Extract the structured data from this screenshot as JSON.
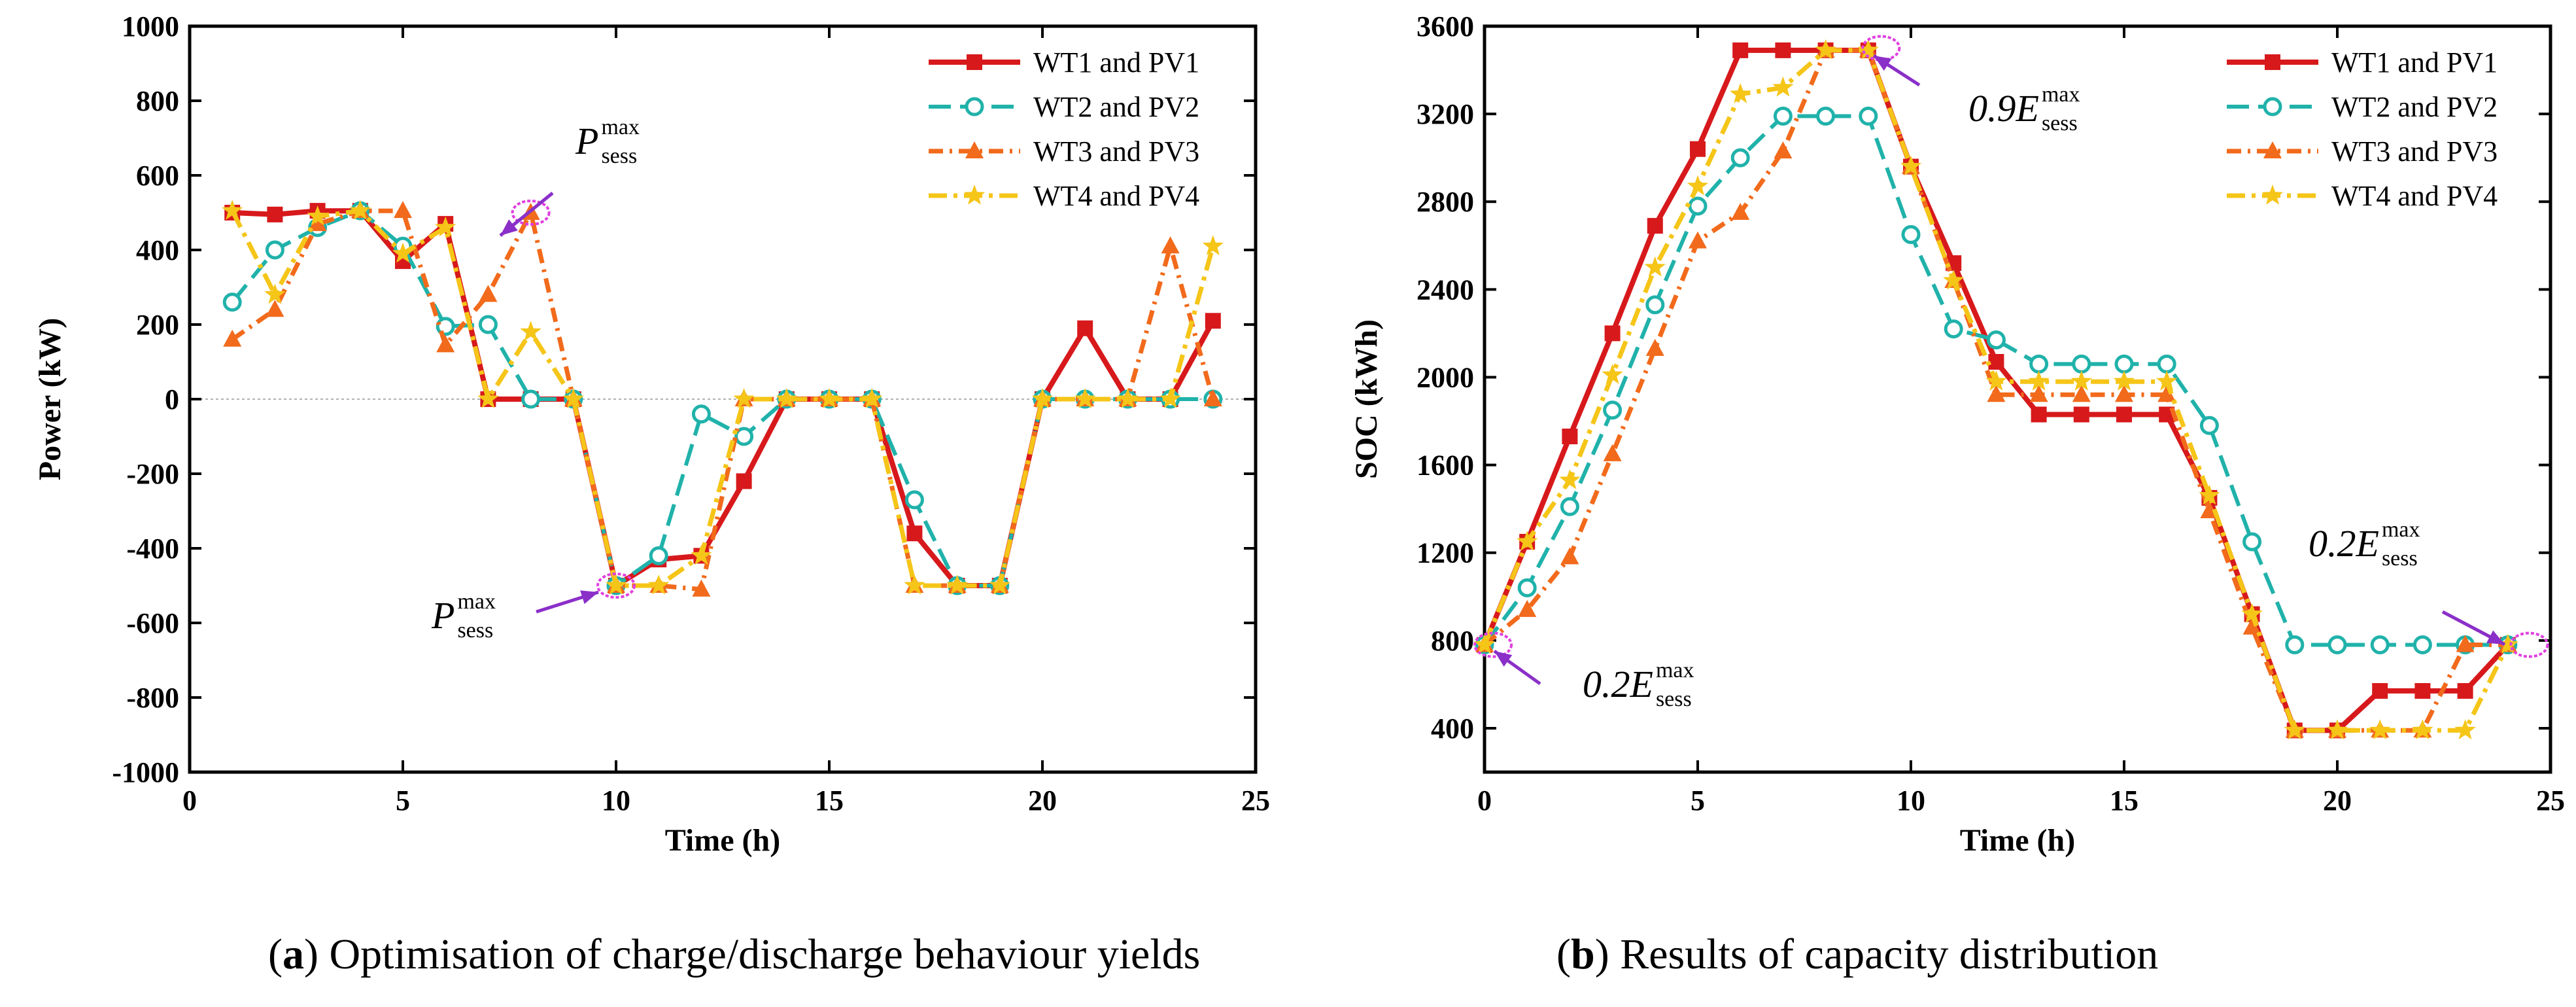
{
  "colors": {
    "s1": "#d7191c",
    "s2": "#20b2aa",
    "s3": "#f26a1b",
    "s4": "#f5c518",
    "arrow": "#8b2fc9",
    "marker": "#e040e0"
  },
  "chart_data": [
    {
      "type": "line",
      "id": "a",
      "xlabel": "Time (h)",
      "ylabel": "Power (kW)",
      "xlim": [
        0,
        25
      ],
      "ylim": [
        -1000,
        1000
      ],
      "xticks": [
        0,
        5,
        10,
        15,
        20,
        25
      ],
      "yticks": [
        -1000,
        -800,
        -600,
        -400,
        -200,
        0,
        200,
        400,
        600,
        800,
        1000
      ],
      "zero_line": true,
      "legend_position": "top-right",
      "caption": {
        "label": "a",
        "open": "(",
        "close": ")",
        "text": " Optimisation of charge/discharge behaviour yields"
      },
      "annotations": [
        {
          "main": "P",
          "sub": "sess",
          "sup": "max",
          "at_x": 8,
          "at_y": 500
        },
        {
          "main": "P",
          "sub": "sess",
          "sup": "max",
          "at_x": 10,
          "at_y": -500
        }
      ],
      "series": [
        {
          "name": "WT1 and PV1",
          "x": [
            1,
            2,
            3,
            4,
            5,
            6,
            7,
            8,
            9,
            10,
            11,
            12,
            13,
            14,
            15,
            16,
            17,
            18,
            19,
            20,
            21,
            22,
            23,
            24
          ],
          "values": [
            500,
            495,
            505,
            505,
            370,
            470,
            0,
            0,
            0,
            -500,
            -430,
            -420,
            -220,
            0,
            0,
            0,
            -360,
            -500,
            -500,
            0,
            190,
            0,
            0,
            210
          ]
        },
        {
          "name": "WT2 and PV2",
          "x": [
            1,
            2,
            3,
            4,
            5,
            6,
            7,
            8,
            9,
            10,
            11,
            12,
            13,
            14,
            15,
            16,
            17,
            18,
            19,
            20,
            21,
            22,
            23,
            24
          ],
          "values": [
            260,
            400,
            460,
            505,
            410,
            195,
            200,
            0,
            0,
            -500,
            -420,
            -40,
            -100,
            0,
            0,
            0,
            -270,
            -500,
            -500,
            0,
            0,
            0,
            0,
            0
          ]
        },
        {
          "name": "WT3 and PV3",
          "x": [
            1,
            2,
            3,
            4,
            5,
            6,
            7,
            8,
            9,
            10,
            11,
            12,
            13,
            14,
            15,
            16,
            17,
            18,
            19,
            20,
            21,
            22,
            23,
            24
          ],
          "values": [
            160,
            240,
            470,
            505,
            505,
            145,
            280,
            500,
            0,
            -500,
            -500,
            -510,
            0,
            0,
            0,
            0,
            -500,
            -500,
            -500,
            0,
            0,
            0,
            410,
            0
          ]
        },
        {
          "name": "WT4 and PV4",
          "x": [
            1,
            2,
            3,
            4,
            5,
            6,
            7,
            8,
            9,
            10,
            11,
            12,
            13,
            14,
            15,
            16,
            17,
            18,
            19,
            20,
            21,
            22,
            23,
            24
          ],
          "values": [
            505,
            280,
            490,
            505,
            390,
            460,
            0,
            180,
            0,
            -500,
            -500,
            -420,
            0,
            0,
            0,
            0,
            -500,
            -500,
            -500,
            0,
            0,
            0,
            0,
            410
          ]
        }
      ]
    },
    {
      "type": "line",
      "id": "b",
      "xlabel": "Time (h)",
      "ylabel": "SOC (kWh)",
      "xlim": [
        0,
        25
      ],
      "ylim": [
        200,
        3600
      ],
      "xticks": [
        0,
        5,
        10,
        15,
        20,
        25
      ],
      "yticks": [
        400,
        800,
        1200,
        1600,
        2000,
        2400,
        2800,
        3200,
        3600
      ],
      "zero_line": false,
      "legend_position": "top-right",
      "caption": {
        "label": "b",
        "open": "(",
        "close": ")",
        "text": " Results of capacity distribution"
      },
      "annotations": [
        {
          "main": "0.9E",
          "sub": "sess",
          "sup": "max",
          "at_x": 9.3,
          "at_y": 3500
        },
        {
          "main": "0.2E",
          "sub": "sess",
          "sup": "max",
          "at_x": 24.5,
          "at_y": 780
        },
        {
          "main": "0.2E",
          "sub": "sess",
          "sup": "max",
          "at_x": 0.2,
          "at_y": 780
        }
      ],
      "series": [
        {
          "name": "WT1 and PV1",
          "x": [
            0,
            1,
            2,
            3,
            4,
            5,
            6,
            7,
            8,
            9,
            10,
            11,
            12,
            13,
            14,
            15,
            16,
            17,
            18,
            19,
            20,
            21,
            22,
            23,
            24
          ],
          "values": [
            780,
            1250,
            1730,
            2200,
            2690,
            3040,
            3490,
            3490,
            3490,
            3490,
            2960,
            2520,
            2070,
            1830,
            1830,
            1830,
            1830,
            1450,
            920,
            390,
            390,
            570,
            570,
            570,
            780
          ]
        },
        {
          "name": "WT2 and PV2",
          "x": [
            0,
            1,
            2,
            3,
            4,
            5,
            6,
            7,
            8,
            9,
            10,
            11,
            12,
            13,
            14,
            15,
            16,
            17,
            18,
            19,
            20,
            21,
            22,
            23,
            24
          ],
          "values": [
            780,
            1040,
            1410,
            1850,
            2330,
            2780,
            3000,
            3190,
            3190,
            3190,
            2650,
            2220,
            2170,
            2060,
            2060,
            2060,
            2060,
            1780,
            1250,
            780,
            780,
            780,
            780,
            780,
            780
          ]
        },
        {
          "name": "WT3 and PV3",
          "x": [
            0,
            1,
            2,
            3,
            4,
            5,
            6,
            7,
            8,
            9,
            10,
            11,
            12,
            13,
            14,
            15,
            16,
            17,
            18,
            19,
            20,
            21,
            22,
            23,
            24
          ],
          "values": [
            780,
            940,
            1180,
            1650,
            2130,
            2620,
            2750,
            3030,
            3490,
            3490,
            2960,
            2440,
            1920,
            1920,
            1920,
            1920,
            1920,
            1390,
            860,
            390,
            390,
            390,
            390,
            780,
            780
          ]
        },
        {
          "name": "WT4 and PV4",
          "x": [
            0,
            1,
            2,
            3,
            4,
            5,
            6,
            7,
            8,
            9,
            10,
            11,
            12,
            13,
            14,
            15,
            16,
            17,
            18,
            19,
            20,
            21,
            22,
            23,
            24
          ],
          "values": [
            780,
            1250,
            1530,
            2010,
            2500,
            2870,
            3290,
            3320,
            3490,
            3490,
            2960,
            2440,
            1980,
            1980,
            1980,
            1980,
            1980,
            1460,
            920,
            390,
            390,
            390,
            390,
            390,
            780
          ]
        }
      ]
    }
  ]
}
